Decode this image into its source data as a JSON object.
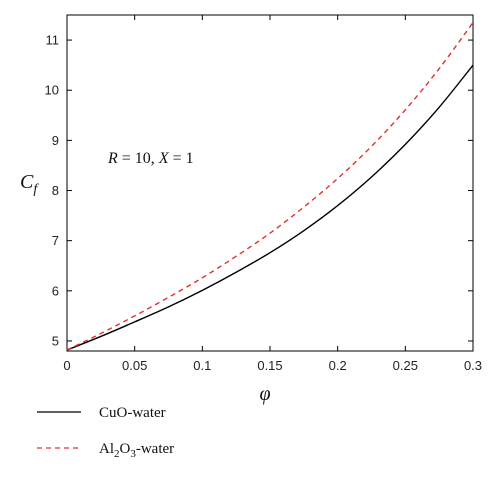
{
  "chart_data": {
    "type": "line",
    "xlabel": "φ",
    "ylabel_main": "C",
    "ylabel_sub": "f",
    "annotation": "R = 10, X = 1",
    "xlim": [
      0,
      0.3
    ],
    "ylim": [
      4.8,
      11.5
    ],
    "xticks": [
      0,
      0.05,
      0.1,
      0.15,
      0.2,
      0.25,
      0.3
    ],
    "xtick_labels": [
      "0",
      "0.05",
      "0.1",
      "0.15",
      "0.2",
      "0.25",
      "0.3"
    ],
    "yticks": [
      5,
      6,
      7,
      8,
      9,
      10,
      11
    ],
    "ytick_labels": [
      "5",
      "6",
      "7",
      "8",
      "9",
      "10",
      "11"
    ],
    "grid": false,
    "legend_position": "bottom-left, below plot",
    "series": [
      {
        "name": "CuO-water",
        "color": "#000000",
        "dash": "solid",
        "x": [
          0,
          0.025,
          0.05,
          0.075,
          0.1,
          0.125,
          0.15,
          0.175,
          0.2,
          0.225,
          0.25,
          0.275,
          0.3
        ],
        "y": [
          4.82,
          5.09,
          5.38,
          5.68,
          6.01,
          6.37,
          6.76,
          7.2,
          7.7,
          8.27,
          8.92,
          9.66,
          10.5
        ]
      },
      {
        "name": "Al2O3-water",
        "color": "#e23030",
        "dash": "dashed",
        "x": [
          0,
          0.025,
          0.05,
          0.075,
          0.1,
          0.125,
          0.15,
          0.175,
          0.2,
          0.225,
          0.25,
          0.275,
          0.3
        ],
        "y": [
          4.82,
          5.15,
          5.5,
          5.87,
          6.26,
          6.69,
          7.15,
          7.67,
          8.24,
          8.88,
          9.61,
          10.43,
          11.35
        ]
      }
    ]
  },
  "legend": {
    "items": [
      {
        "prefix": "CuO-water",
        "sub1": "",
        "mid": "",
        "sub2": "",
        "suffix": ""
      },
      {
        "prefix": "Al",
        "sub1": "2",
        "mid": "O",
        "sub2": "3",
        "suffix": "-water"
      }
    ]
  }
}
